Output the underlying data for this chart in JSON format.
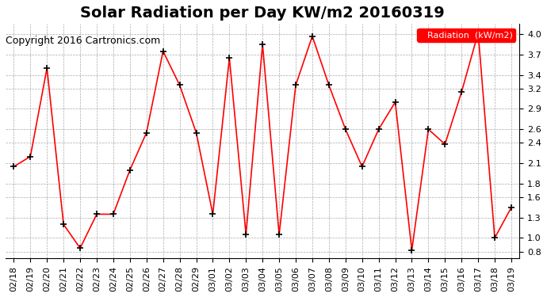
{
  "title": "Solar Radiation per Day KW/m2 20160319",
  "copyright": "Copyright 2016 Cartronics.com",
  "legend_label": "Radiation  (kW/m2)",
  "ylim": [
    0.7,
    4.15
  ],
  "yticks": [
    0.8,
    1.0,
    1.3,
    1.6,
    1.8,
    2.1,
    2.4,
    2.6,
    2.9,
    3.2,
    3.4,
    3.7,
    4.0
  ],
  "dates": [
    "02/18",
    "02/19",
    "02/20",
    "02/21",
    "02/22",
    "02/23",
    "02/24",
    "02/25",
    "02/26",
    "02/27",
    "02/28",
    "02/29",
    "03/01",
    "03/02",
    "03/03",
    "03/04",
    "03/05",
    "03/06",
    "03/07",
    "03/08",
    "03/09",
    "03/10",
    "03/11",
    "03/12",
    "03/13",
    "03/14",
    "03/15",
    "03/16",
    "03/17",
    "03/18",
    "03/19"
  ],
  "values": [
    2.05,
    2.2,
    3.5,
    1.2,
    0.85,
    1.35,
    1.35,
    2.0,
    2.55,
    3.75,
    3.25,
    2.55,
    1.35,
    3.65,
    1.05,
    3.85,
    1.05,
    3.25,
    3.97,
    3.25,
    2.6,
    2.05,
    2.6,
    3.0,
    0.82,
    2.6,
    2.38,
    3.15,
    4.02,
    1.0,
    1.45
  ],
  "line_color": "#ff0000",
  "marker_color": "#000000",
  "bg_color": "#ffffff",
  "grid_color": "#aaaaaa",
  "title_fontsize": 14,
  "copyright_fontsize": 9,
  "tick_fontsize": 8,
  "legend_bg": "#ff0000",
  "legend_fg": "#ffffff"
}
